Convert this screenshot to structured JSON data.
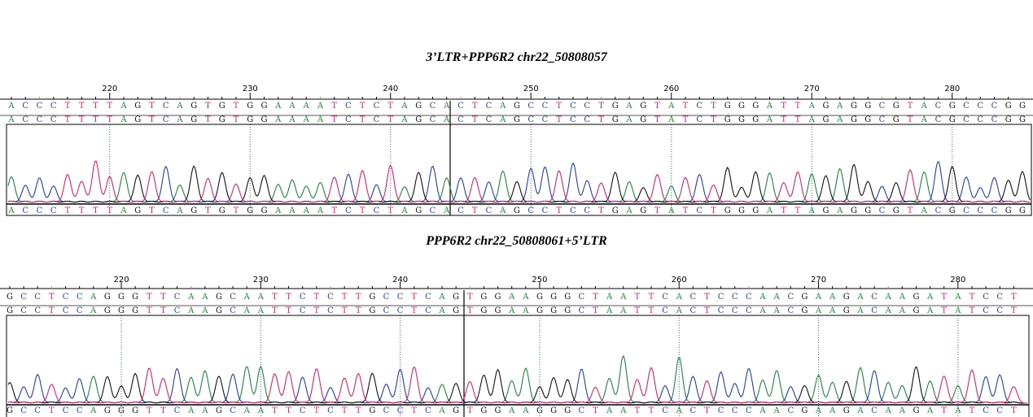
{
  "chart_data": [
    {
      "type": "chromatogram",
      "title": "3’LTR+PPP6R2  chr22_50808057",
      "tick_labels": [
        220,
        230,
        240,
        250,
        260,
        270,
        280
      ],
      "first_position": 213,
      "sequence_left": "ACCCTTTTAGTCAGTGTGGAAAATCTCTAGCA",
      "sequence_right": "CTCAGCCTCCTGAGTATCTGGGATTAGAGGCGTACGCCCGG"
    },
    {
      "type": "chromatogram",
      "title": "PPP6R2  chr22_50808061+5’LTR",
      "tick_labels": [
        220,
        230,
        240,
        250,
        260,
        270,
        280
      ],
      "first_position": 212,
      "sequence_left": "GCCTCCAGGGTTCAAGCAATTCTCTTGCCTCAG",
      "sequence_right": "TGGAAGGGCTAATTCACTCCCAACGAAGACAAGATATCCT"
    }
  ],
  "colors": {
    "A": "#1a8a3a",
    "C": "#1f3fb0",
    "G": "#111111",
    "T": "#e0206f"
  }
}
